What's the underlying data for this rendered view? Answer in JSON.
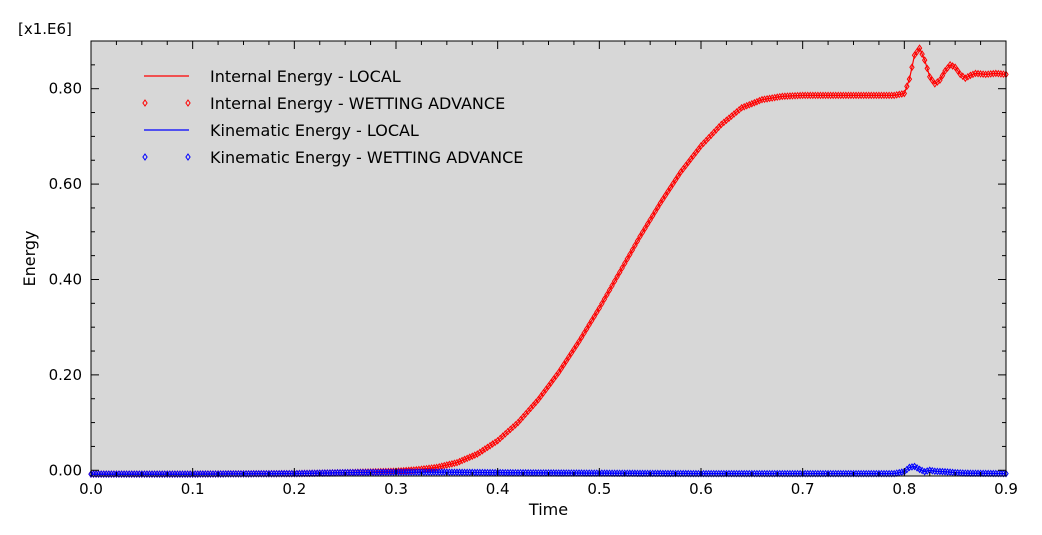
{
  "chart_data": {
    "type": "line",
    "title": "",
    "xlabel": "Time",
    "ylabel": "Energy",
    "y_multiplier_label": "[x1.E6]",
    "xlim": [
      0.0,
      0.9
    ],
    "ylim": [
      -0.012,
      0.9
    ],
    "x_ticks": [
      "0.0",
      "0.1",
      "0.2",
      "0.3",
      "0.4",
      "0.5",
      "0.6",
      "0.7",
      "0.8",
      "0.9"
    ],
    "x_tick_values": [
      0.0,
      0.1,
      0.2,
      0.3,
      0.4,
      0.5,
      0.6,
      0.7,
      0.8,
      0.9
    ],
    "y_ticks": [
      "0.00",
      "0.20",
      "0.40",
      "0.60",
      "0.80"
    ],
    "y_tick_values": [
      0.0,
      0.2,
      0.4,
      0.6,
      0.8
    ],
    "grid": false,
    "plot_background": "#d7d7d7",
    "legend_position": "top-left",
    "series": [
      {
        "name": "Internal Energy - LOCAL",
        "style": "line",
        "color": "#ff0000",
        "x": [
          0.0,
          0.1,
          0.2,
          0.25,
          0.3,
          0.32,
          0.34,
          0.36,
          0.38,
          0.4,
          0.42,
          0.44,
          0.46,
          0.48,
          0.5,
          0.52,
          0.54,
          0.56,
          0.58,
          0.6,
          0.62,
          0.64,
          0.66,
          0.68,
          0.7,
          0.75,
          0.79,
          0.8,
          0.805,
          0.81,
          0.815,
          0.82,
          0.825,
          0.83,
          0.835,
          0.84,
          0.845,
          0.85,
          0.855,
          0.86,
          0.865,
          0.87,
          0.88,
          0.89,
          0.9
        ],
        "y": [
          -0.008,
          -0.008,
          -0.007,
          -0.005,
          -0.002,
          0.001,
          0.006,
          0.016,
          0.034,
          0.062,
          0.1,
          0.148,
          0.205,
          0.27,
          0.34,
          0.415,
          0.49,
          0.56,
          0.625,
          0.68,
          0.725,
          0.76,
          0.777,
          0.784,
          0.786,
          0.786,
          0.786,
          0.79,
          0.82,
          0.87,
          0.885,
          0.86,
          0.825,
          0.81,
          0.818,
          0.837,
          0.85,
          0.845,
          0.83,
          0.822,
          0.828,
          0.832,
          0.83,
          0.832,
          0.83
        ]
      },
      {
        "name": "Internal Energy - WETTING ADVANCE",
        "style": "markers",
        "marker": "diamond",
        "color": "#ff0000",
        "x": [
          0.0,
          0.1,
          0.2,
          0.25,
          0.3,
          0.32,
          0.34,
          0.36,
          0.38,
          0.4,
          0.42,
          0.44,
          0.46,
          0.48,
          0.5,
          0.52,
          0.54,
          0.56,
          0.58,
          0.6,
          0.62,
          0.64,
          0.66,
          0.68,
          0.7,
          0.75,
          0.79,
          0.8,
          0.805,
          0.81,
          0.815,
          0.82,
          0.825,
          0.83,
          0.835,
          0.84,
          0.845,
          0.85,
          0.855,
          0.86,
          0.865,
          0.87,
          0.88,
          0.89,
          0.9
        ],
        "y": [
          -0.008,
          -0.008,
          -0.007,
          -0.005,
          -0.002,
          0.001,
          0.006,
          0.016,
          0.034,
          0.062,
          0.1,
          0.148,
          0.205,
          0.27,
          0.34,
          0.415,
          0.49,
          0.56,
          0.625,
          0.68,
          0.725,
          0.76,
          0.777,
          0.784,
          0.786,
          0.786,
          0.786,
          0.79,
          0.82,
          0.87,
          0.885,
          0.86,
          0.825,
          0.81,
          0.818,
          0.837,
          0.85,
          0.845,
          0.83,
          0.822,
          0.828,
          0.832,
          0.83,
          0.832,
          0.83
        ]
      },
      {
        "name": "Kinematic Energy - LOCAL",
        "style": "line",
        "color": "#0000ff",
        "x": [
          0.0,
          0.1,
          0.2,
          0.25,
          0.3,
          0.35,
          0.4,
          0.5,
          0.6,
          0.7,
          0.79,
          0.8,
          0.805,
          0.81,
          0.815,
          0.82,
          0.825,
          0.83,
          0.84,
          0.85,
          0.86,
          0.9
        ],
        "y": [
          -0.008,
          -0.008,
          -0.007,
          -0.005,
          -0.004,
          -0.004,
          -0.005,
          -0.006,
          -0.007,
          -0.007,
          -0.007,
          -0.003,
          0.006,
          0.008,
          0.002,
          -0.003,
          0.0,
          -0.002,
          -0.003,
          -0.005,
          -0.006,
          -0.007
        ]
      },
      {
        "name": "Kinematic Energy - WETTING ADVANCE",
        "style": "markers",
        "marker": "diamond",
        "color": "#0000ff",
        "x": [
          0.0,
          0.1,
          0.2,
          0.25,
          0.3,
          0.35,
          0.4,
          0.5,
          0.6,
          0.7,
          0.79,
          0.8,
          0.805,
          0.81,
          0.815,
          0.82,
          0.825,
          0.83,
          0.84,
          0.85,
          0.86,
          0.9
        ],
        "y": [
          -0.008,
          -0.008,
          -0.007,
          -0.005,
          -0.004,
          -0.004,
          -0.005,
          -0.006,
          -0.007,
          -0.007,
          -0.007,
          -0.003,
          0.006,
          0.008,
          0.002,
          -0.003,
          0.0,
          -0.002,
          -0.003,
          -0.005,
          -0.006,
          -0.007
        ]
      }
    ]
  }
}
